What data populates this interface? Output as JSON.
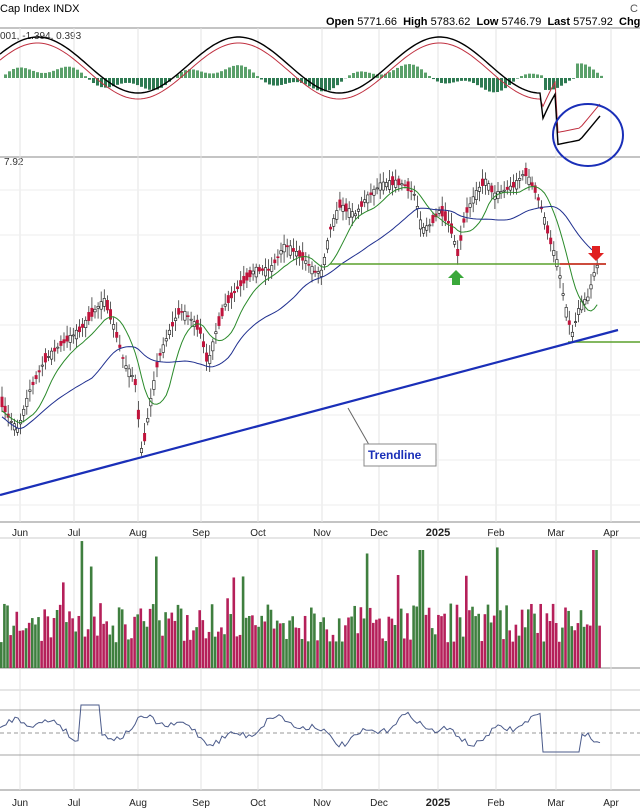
{
  "header": {
    "title": "Cap Index INDX",
    "open_label": "Open",
    "open": "5771.66",
    "high_label": "High",
    "high": "5783.62",
    "low_label": "Low",
    "low": "5746.79",
    "last_label": "Last",
    "last": "5757.92",
    "chg_label": "Chg",
    "corner": "C",
    "macd_values": "001, -1.394, 0.393",
    "price_tag": "7.92"
  },
  "annotations": {
    "trendline_label": "Trendline"
  },
  "colors": {
    "up": "#3b7a3b",
    "down": "#c0143c",
    "trendline": "#1a2fb8",
    "ma_fast": "#2a8a2a",
    "ma_slow": "#1f2f8f",
    "support": "#5aa02c",
    "resistance": "#d62020",
    "macd": "#000000",
    "signal": "#c03040",
    "circle": "#1a2fb8",
    "arrow_up": "#3aa83a",
    "arrow_down": "#e02020"
  },
  "chart_data": {
    "type": "candlestick",
    "x_ticks": [
      "Jun",
      "Jul",
      "Aug",
      "Sep",
      "Oct",
      "Nov",
      "Dec",
      "2025",
      "Feb",
      "Mar",
      "Apr"
    ],
    "series": [
      {
        "name": "Price",
        "approx_close": [
          5250,
          5300,
          5420,
          5550,
          5470,
          5200,
          5560,
          5710,
          5800,
          6050,
          5900,
          6090,
          6110,
          6020,
          5600,
          5760
        ]
      },
      {
        "name": "Support (green line)",
        "value": 5870
      },
      {
        "name": "Trendline",
        "from": "2024-05",
        "to": "2025-04"
      }
    ],
    "panels": [
      "MACD",
      "Price",
      "Volume",
      "RSI"
    ],
    "grid": true
  }
}
